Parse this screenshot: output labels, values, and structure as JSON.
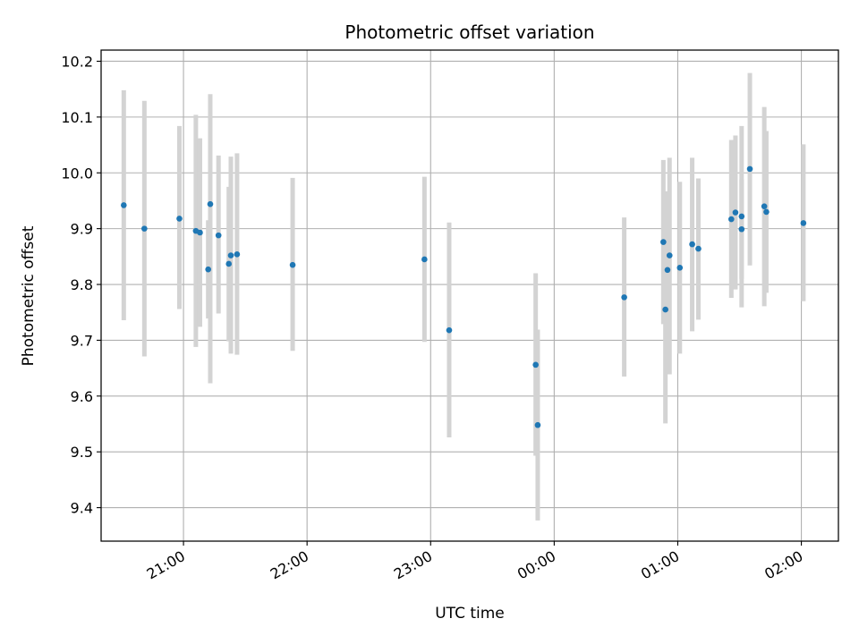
{
  "chart_data": {
    "type": "scatter",
    "title": "Photometric offset variation",
    "xlabel": "UTC time",
    "ylabel": "Photometric offset",
    "x_axis_kind": "time",
    "xlim": [
      "20:20",
      "02:18"
    ],
    "ylim": [
      9.34,
      10.22
    ],
    "x_ticks": [
      "21:00",
      "22:00",
      "23:00",
      "00:00",
      "01:00",
      "02:00"
    ],
    "y_ticks": [
      "9.4",
      "9.5",
      "9.6",
      "9.7",
      "9.8",
      "9.9",
      "10.0",
      "10.1",
      "10.2"
    ],
    "grid": true,
    "colors": {
      "point": "#1f77b4",
      "errorbar": "#d3d3d3",
      "grid": "#b0b0b0",
      "axes": "#000000"
    },
    "series": [
      {
        "points": [
          {
            "x": "20:31",
            "y": 9.942,
            "ymin": 9.736,
            "ymax": 10.148
          },
          {
            "x": "20:41",
            "y": 9.9,
            "ymin": 9.671,
            "ymax": 10.129
          },
          {
            "x": "20:58",
            "y": 9.918,
            "ymin": 9.756,
            "ymax": 10.084
          },
          {
            "x": "21:06",
            "y": 9.896,
            "ymin": 9.688,
            "ymax": 10.104
          },
          {
            "x": "21:08",
            "y": 9.893,
            "ymin": 9.724,
            "ymax": 10.062
          },
          {
            "x": "21:12",
            "y": 9.827,
            "ymin": 9.739,
            "ymax": 9.915
          },
          {
            "x": "21:13",
            "y": 9.944,
            "ymin": 9.623,
            "ymax": 10.141
          },
          {
            "x": "21:17",
            "y": 9.888,
            "ymin": 9.748,
            "ymax": 10.031
          },
          {
            "x": "21:22",
            "y": 9.837,
            "ymin": 9.698,
            "ymax": 9.975
          },
          {
            "x": "21:23",
            "y": 9.852,
            "ymin": 9.676,
            "ymax": 10.029
          },
          {
            "x": "21:26",
            "y": 9.854,
            "ymin": 9.674,
            "ymax": 10.035
          },
          {
            "x": "21:53",
            "y": 9.835,
            "ymin": 9.681,
            "ymax": 9.991
          },
          {
            "x": "22:57",
            "y": 9.845,
            "ymin": 9.697,
            "ymax": 9.993
          },
          {
            "x": "23:09",
            "y": 9.718,
            "ymin": 9.526,
            "ymax": 9.911
          },
          {
            "x": "23:51",
            "y": 9.656,
            "ymin": 9.493,
            "ymax": 9.82
          },
          {
            "x": "23:52",
            "y": 9.548,
            "ymin": 9.377,
            "ymax": 9.719
          },
          {
            "x": "00:34",
            "y": 9.777,
            "ymin": 9.635,
            "ymax": 9.92
          },
          {
            "x": "00:53",
            "y": 9.876,
            "ymin": 9.729,
            "ymax": 10.023
          },
          {
            "x": "00:54",
            "y": 9.755,
            "ymin": 9.551,
            "ymax": 9.96
          },
          {
            "x": "00:55",
            "y": 9.826,
            "ymin": 9.684,
            "ymax": 9.967
          },
          {
            "x": "00:56",
            "y": 9.852,
            "ymin": 9.639,
            "ymax": 10.027
          },
          {
            "x": "01:01",
            "y": 9.83,
            "ymin": 9.676,
            "ymax": 9.984
          },
          {
            "x": "01:07",
            "y": 9.872,
            "ymin": 9.716,
            "ymax": 10.027
          },
          {
            "x": "01:10",
            "y": 9.864,
            "ymin": 9.737,
            "ymax": 9.99
          },
          {
            "x": "01:26",
            "y": 9.917,
            "ymin": 9.776,
            "ymax": 10.059
          },
          {
            "x": "01:28",
            "y": 9.929,
            "ymin": 9.791,
            "ymax": 10.067
          },
          {
            "x": "01:31",
            "y": 9.922,
            "ymin": 9.759,
            "ymax": 10.084
          },
          {
            "x": "01:31",
            "y": 9.899,
            "ymin": 9.81,
            "ymax": 9.988
          },
          {
            "x": "01:35",
            "y": 10.007,
            "ymin": 9.834,
            "ymax": 10.179
          },
          {
            "x": "01:42",
            "y": 9.94,
            "ymin": 9.761,
            "ymax": 10.118
          },
          {
            "x": "01:43",
            "y": 9.93,
            "ymin": 9.785,
            "ymax": 10.075
          },
          {
            "x": "02:01",
            "y": 9.91,
            "ymin": 9.77,
            "ymax": 10.051
          }
        ]
      }
    ]
  }
}
